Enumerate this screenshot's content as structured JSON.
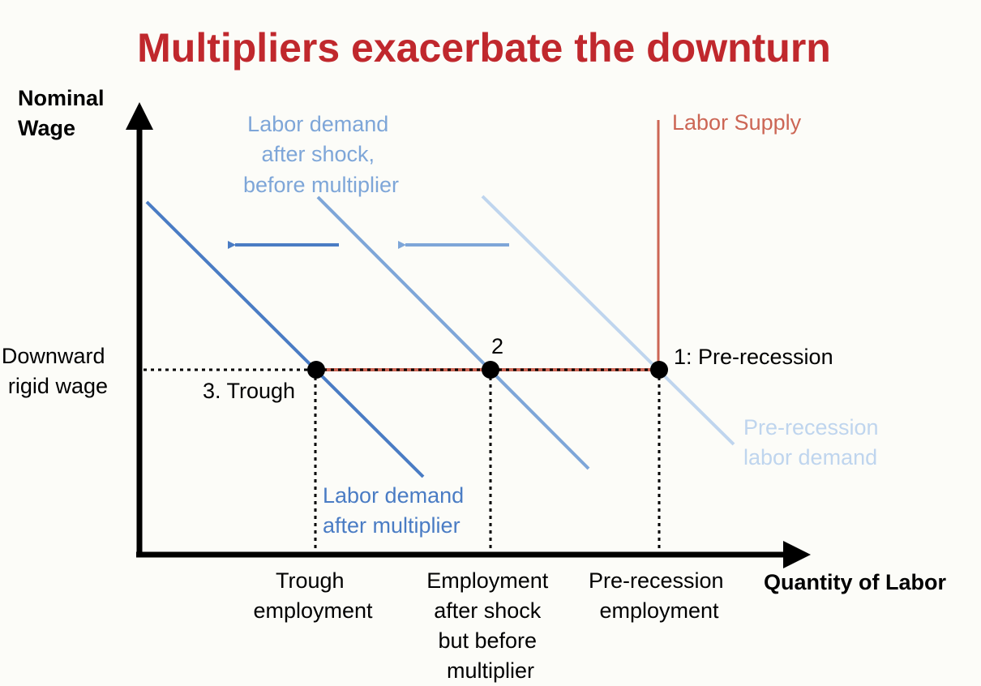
{
  "title": "Multipliers exacerbate the downturn",
  "axes": {
    "y_label": [
      "Nominal",
      "Wage"
    ],
    "x_label": "Quantity of Labor"
  },
  "wage_label": [
    "Downward",
    "rigid wage"
  ],
  "curves": {
    "labor_supply": "Labor Supply",
    "demand_pre": [
      "Pre-recession",
      "labor demand"
    ],
    "demand_shock": [
      "Labor demand",
      "after shock,",
      "before multiplier"
    ],
    "demand_multiplier": [
      "Labor demand",
      "after multiplier"
    ]
  },
  "points": {
    "p1": "1: Pre-recession",
    "p2": "2",
    "p3": "3. Trough"
  },
  "x_ticks": {
    "trough": [
      "Trough",
      "employment"
    ],
    "after_shock": [
      "Employment",
      "after shock",
      "but before",
      "multiplier"
    ],
    "pre": [
      "Pre-recession",
      "employment"
    ]
  },
  "colors": {
    "title": "#c0282d",
    "supply": "#cc6655",
    "demand_pre": "#bfd5ee",
    "demand_shock": "#7ea6d8",
    "demand_multiplier": "#4a7cc4",
    "axis": "#000000"
  }
}
